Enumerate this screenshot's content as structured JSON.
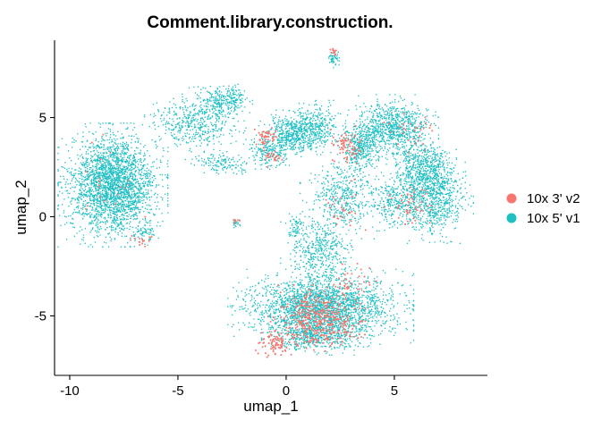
{
  "chart_data": {
    "type": "scatter",
    "title": "Comment.library.construction.",
    "xlabel": "umap_1",
    "ylabel": "umap_2",
    "xlim": [
      -10.7,
      9.3
    ],
    "ylim": [
      -8.0,
      8.9
    ],
    "x_ticks": [
      -10,
      -5,
      0,
      5
    ],
    "y_ticks": [
      -5,
      0,
      5
    ],
    "x_tick_labels": [
      "-10",
      "-5",
      "0",
      "5"
    ],
    "y_tick_labels": [
      "-5",
      "0",
      "5"
    ],
    "grid": false,
    "legend_position": "right",
    "series": [
      {
        "name": "10x 5' v1",
        "color": "#1FBFC4",
        "clusters": [
          {
            "cx": -8.0,
            "cy": 1.6,
            "sx": 1.3,
            "sy": 1.6,
            "n": 2600
          },
          {
            "cx": -4.2,
            "cy": 4.8,
            "sx": 1.2,
            "sy": 0.9,
            "n": 500
          },
          {
            "cx": -2.8,
            "cy": 5.9,
            "sx": 0.7,
            "sy": 0.4,
            "n": 250
          },
          {
            "cx": -2.9,
            "cy": 2.7,
            "sx": 0.9,
            "sy": 0.3,
            "n": 140
          },
          {
            "cx": 0.3,
            "cy": 4.2,
            "sx": 0.8,
            "sy": 0.6,
            "n": 500
          },
          {
            "cx": 1.4,
            "cy": 4.5,
            "sx": 0.7,
            "sy": 0.7,
            "n": 320
          },
          {
            "cx": -0.8,
            "cy": 3.3,
            "sx": 0.6,
            "sy": 0.5,
            "n": 200
          },
          {
            "cx": 2.2,
            "cy": 8.0,
            "sx": 0.15,
            "sy": 0.25,
            "n": 50
          },
          {
            "cx": 4.9,
            "cy": 4.4,
            "sx": 1.1,
            "sy": 0.9,
            "n": 900
          },
          {
            "cx": 3.4,
            "cy": 3.4,
            "sx": 0.5,
            "sy": 0.7,
            "n": 320
          },
          {
            "cx": 6.7,
            "cy": 1.0,
            "sx": 1.0,
            "sy": 1.2,
            "n": 900
          },
          {
            "cx": 6.3,
            "cy": 2.6,
            "sx": 0.8,
            "sy": 0.7,
            "n": 400
          },
          {
            "cx": 5.0,
            "cy": 0.8,
            "sx": 0.7,
            "sy": 0.7,
            "n": 250
          },
          {
            "cx": 2.6,
            "cy": 0.9,
            "sx": 1.0,
            "sy": 1.2,
            "n": 450
          },
          {
            "cx": 1.5,
            "cy": -1.8,
            "sx": 0.9,
            "sy": 1.1,
            "n": 450
          },
          {
            "cx": 1.6,
            "cy": -4.6,
            "sx": 2.2,
            "sy": 1.0,
            "n": 2400
          },
          {
            "cx": 1.4,
            "cy": -6.0,
            "sx": 1.3,
            "sy": 0.5,
            "n": 500
          },
          {
            "cx": 0.4,
            "cy": -0.6,
            "sx": 0.3,
            "sy": 0.4,
            "n": 60
          },
          {
            "cx": -2.3,
            "cy": -0.3,
            "sx": 0.12,
            "sy": 0.15,
            "n": 25
          },
          {
            "cx": -6.6,
            "cy": -0.9,
            "sx": 0.4,
            "sy": 0.3,
            "n": 60
          }
        ]
      },
      {
        "name": "10x 3' v2",
        "color": "#F8766D",
        "clusters": [
          {
            "cx": 1.5,
            "cy": -5.2,
            "sx": 1.2,
            "sy": 0.9,
            "n": 400
          },
          {
            "cx": -0.5,
            "cy": -6.4,
            "sx": 0.5,
            "sy": 0.35,
            "n": 80
          },
          {
            "cx": -0.9,
            "cy": 4.0,
            "sx": 0.35,
            "sy": 0.3,
            "n": 45
          },
          {
            "cx": -0.6,
            "cy": 3.1,
            "sx": 0.3,
            "sy": 0.3,
            "n": 25
          },
          {
            "cx": 2.2,
            "cy": 8.3,
            "sx": 0.1,
            "sy": 0.15,
            "n": 12
          },
          {
            "cx": 2.8,
            "cy": 3.6,
            "sx": 0.5,
            "sy": 0.5,
            "n": 70
          },
          {
            "cx": 5.7,
            "cy": 0.6,
            "sx": 0.6,
            "sy": 0.6,
            "n": 50
          },
          {
            "cx": 5.8,
            "cy": 4.3,
            "sx": 0.7,
            "sy": 0.6,
            "n": 30
          },
          {
            "cx": -6.8,
            "cy": -1.2,
            "sx": 0.3,
            "sy": 0.2,
            "n": 15
          },
          {
            "cx": -2.3,
            "cy": -0.2,
            "sx": 0.1,
            "sy": 0.1,
            "n": 6
          },
          {
            "cx": 3.0,
            "cy": -3.3,
            "sx": 0.6,
            "sy": 0.6,
            "n": 40
          },
          {
            "cx": 2.5,
            "cy": 0.5,
            "sx": 0.6,
            "sy": 0.8,
            "n": 30
          },
          {
            "cx": -8.0,
            "cy": 2.0,
            "sx": 1.2,
            "sy": 1.3,
            "n": 20
          }
        ]
      }
    ],
    "legend": [
      {
        "label": "10x 3' v2",
        "color": "#F8766D"
      },
      {
        "label": "10x 5' v1",
        "color": "#1FBFC4"
      }
    ]
  }
}
